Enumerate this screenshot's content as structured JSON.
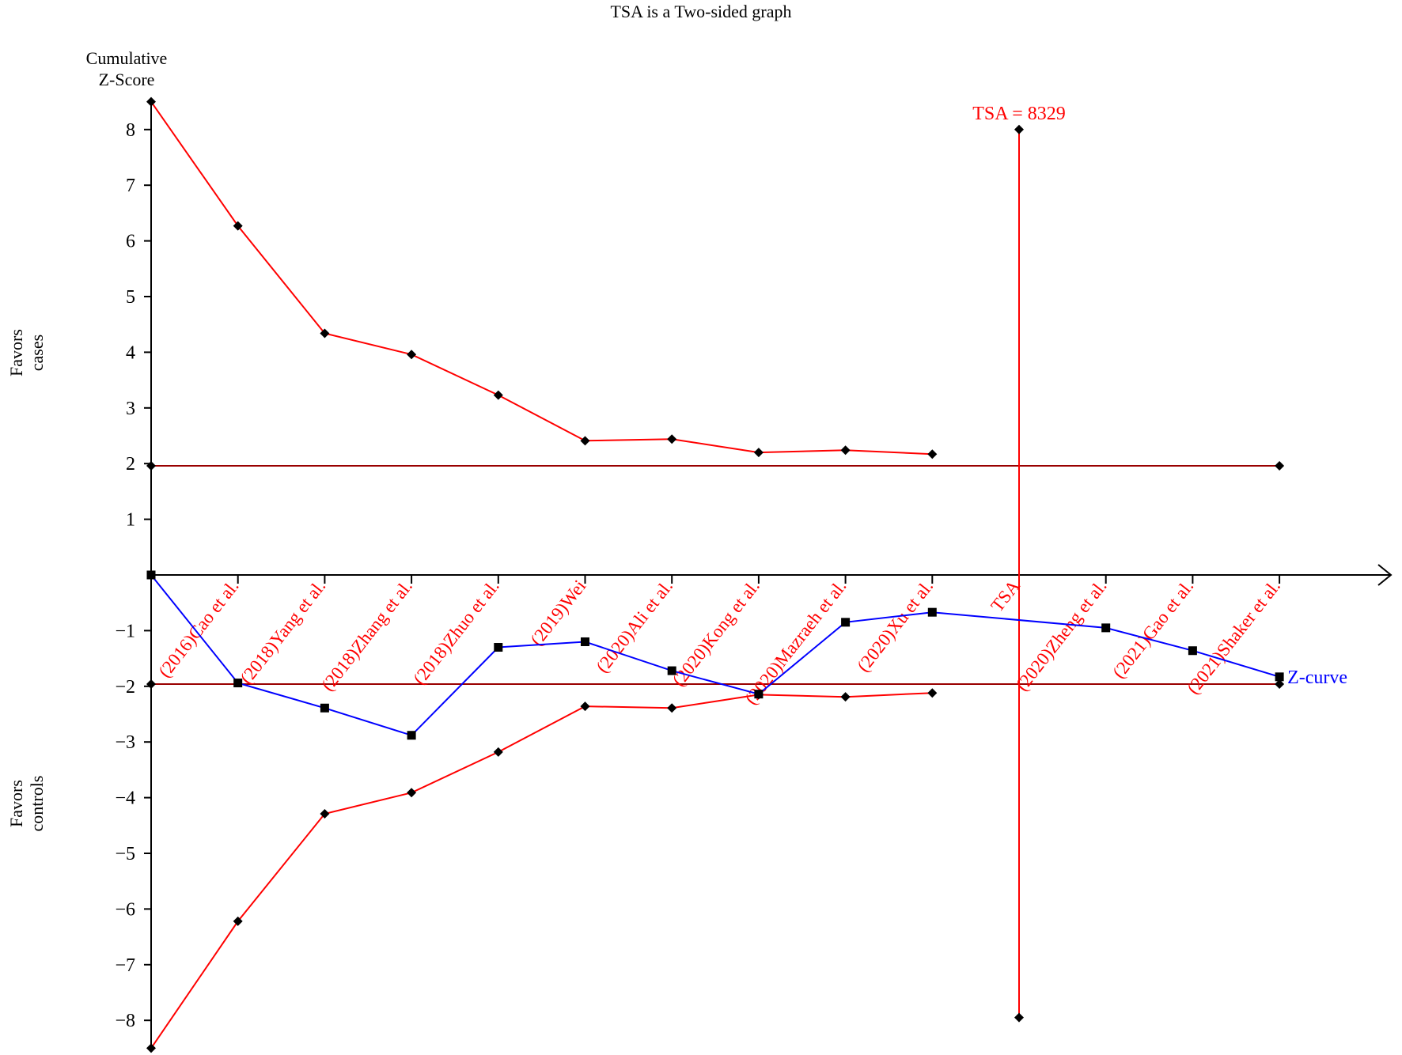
{
  "title": "TSA is a Two-sided graph",
  "colors": {
    "boundary": "#ff0000",
    "zcurve": "#0000ff",
    "axis": "#000000",
    "conventional": "#990000"
  },
  "chart_data": {
    "type": "line",
    "title": "TSA is a Two-sided graph",
    "ylabel_lines": [
      "Cumulative",
      "Z-Score"
    ],
    "upper_region_label": [
      "Favors",
      "cases"
    ],
    "lower_region_label": [
      "Favors",
      "controls"
    ],
    "ylim": [
      -8.5,
      8.5
    ],
    "y_ticks": [
      8,
      7,
      6,
      5,
      4,
      3,
      2,
      1,
      -1,
      -2,
      -3,
      -4,
      -5,
      -6,
      -7,
      -8
    ],
    "y_tick_labels": [
      "8",
      "7",
      "6",
      "5",
      "4",
      "3",
      "2",
      "1",
      "−1",
      "−2",
      "−3",
      "−4",
      "−5",
      "−6",
      "−7",
      "−8"
    ],
    "categories": [
      "(2016)Cao et al.",
      "(2018)Yang et al.",
      "(2018)Zhang et al.",
      "(2018)Zhuo et al.",
      "(2019)Wei",
      "(2020)Ali et al.",
      "(2020)Kong et al.",
      "(2020)Mazraeh et al.",
      "(2020)Xu et al.",
      "TSA",
      "(2020)Zheng et al.",
      "(2021)Gao et al.",
      "(2021)Shaker et al."
    ],
    "x_positions": [
      1,
      2,
      3,
      4,
      5,
      6,
      7,
      8,
      9,
      10,
      11,
      12,
      13
    ],
    "conventional_boundary": [
      1.96,
      -1.96
    ],
    "series": [
      {
        "role": "upper-boundary",
        "x": [
          0,
          1,
          2,
          3,
          4,
          5,
          6,
          7,
          8,
          9
        ],
        "values": [
          8.5,
          6.27,
          4.34,
          3.96,
          3.23,
          2.41,
          2.44,
          2.2,
          2.24,
          2.17
        ]
      },
      {
        "role": "lower-boundary",
        "x": [
          0,
          1,
          2,
          3,
          4,
          5,
          6,
          7,
          8,
          9
        ],
        "values": [
          -8.5,
          -6.22,
          -4.29,
          -3.91,
          -3.18,
          -2.36,
          -2.39,
          -2.15,
          -2.19,
          -2.12
        ]
      },
      {
        "name": "Z-curve",
        "x": [
          0,
          1,
          2,
          3,
          4,
          5,
          6,
          7,
          8,
          9,
          11,
          12,
          13
        ],
        "values": [
          0,
          -1.94,
          -2.39,
          -2.88,
          -1.3,
          -1.2,
          -1.72,
          -2.14,
          -0.85,
          -0.67,
          -0.95,
          -1.36,
          -1.83
        ]
      }
    ],
    "tsa": {
      "label": "TSA = 8329",
      "x": 10,
      "y_top": 8.0,
      "y_bottom": -7.95
    },
    "z_curve_label": "Z-curve"
  }
}
